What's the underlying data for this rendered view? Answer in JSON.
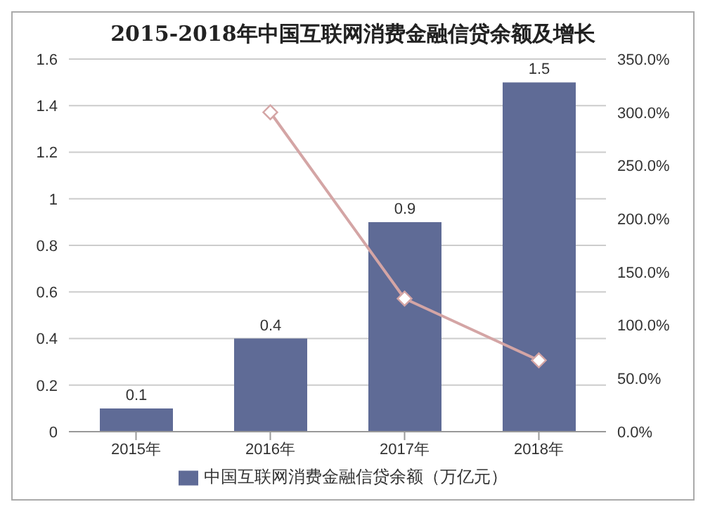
{
  "chart_data": {
    "type": "bar",
    "title": "2015-2018年中国互联网消费金融信贷余额及增长",
    "categories": [
      "2015年",
      "2016年",
      "2017年",
      "2018年"
    ],
    "series": [
      {
        "name": "中国互联网消费金融信贷余额（万亿元）",
        "color": "#5f6b96",
        "values": [
          0.1,
          0.4,
          0.9,
          1.5
        ],
        "value_labels": [
          "0.1",
          "0.4",
          "0.9",
          "1.5"
        ]
      },
      {
        "type": "line",
        "axis": "y2",
        "color": "#d4a5a5",
        "values": [
          null,
          300,
          125,
          67
        ],
        "marker": "diamond"
      }
    ],
    "ylim": [
      0,
      1.6
    ],
    "yticks": [
      0,
      0.2,
      0.4,
      0.6,
      0.8,
      1,
      1.2,
      1.4,
      1.6
    ],
    "y2lim": [
      0,
      350
    ],
    "y2ticks": [
      {
        "value": 0,
        "label": "0.0%"
      },
      {
        "value": 50,
        "label": "50.0%"
      },
      {
        "value": 100,
        "label": "100.0%"
      },
      {
        "value": 150,
        "label": "150.0%"
      },
      {
        "value": 200,
        "label": "200.0%"
      },
      {
        "value": 250,
        "label": "250.0%"
      },
      {
        "value": 300,
        "label": "300.0%"
      },
      {
        "value": 350,
        "label": "350.0%"
      }
    ],
    "grid": "y",
    "legend": "bottom"
  }
}
